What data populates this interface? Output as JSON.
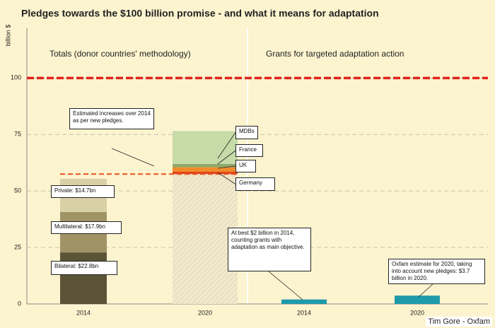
{
  "chart_data": {
    "type": "stacked_bar",
    "title": "Pledges towards the $100 billion promise - and what it means for adaptation",
    "y_label": "billion $",
    "panel_titles": [
      "Totals (donor countries' methodology)",
      "Grants for targeted adaptation action"
    ],
    "categories": [
      "2014",
      "2020",
      "2014",
      "2020"
    ],
    "ylim": [
      0,
      122
    ],
    "yticks": [
      0,
      25,
      50,
      75,
      100
    ],
    "grid": true,
    "series": [
      {
        "color": "#5c5438",
        "values": [
          22.8,
          null,
          null,
          null
        ],
        "value_labels": [
          "Bilateral:  $22.8bn",
          null,
          null,
          null
        ]
      },
      {
        "color": "#a09467",
        "values": [
          17.9,
          null,
          null,
          null
        ],
        "value_labels": [
          "Multilateral:  $17.9bn",
          null,
          null,
          null
        ]
      },
      {
        "color": "#d9d0a6",
        "values": [
          14.7,
          null,
          null,
          null
        ],
        "value_labels": [
          "Private:  $14.7bn",
          null,
          null,
          null
        ]
      },
      {
        "color": "#efe6c6",
        "pattern": "hatch",
        "values": [
          null,
          57.5,
          null,
          null
        ]
      },
      {
        "name": "Germany",
        "color": "#e2441c",
        "values": [
          null,
          1,
          null,
          null
        ]
      },
      {
        "name": "UK",
        "color": "#f08c2c",
        "values": [
          null,
          2,
          null,
          null
        ]
      },
      {
        "name": "France",
        "color": "#8fa86c",
        "values": [
          null,
          1.5,
          null,
          null
        ]
      },
      {
        "name": "MDBs",
        "color": "#c6dba8",
        "values": [
          null,
          14.5,
          null,
          null
        ]
      },
      {
        "color": "#1e9bab",
        "values": [
          null,
          null,
          2,
          3.7
        ]
      }
    ],
    "reference_lines": [
      {
        "value": 100,
        "color": "#e3231b"
      },
      {
        "value": 57.5,
        "color": "#e8501e"
      }
    ],
    "annotations": [
      "Estimated increases over 2014 as per new pledges.",
      "At best $2 billion in 2014, counting grants with adaptation as main objective.",
      "Oxfam estimate for 2020, taking into account new pledges: $3.7 billion in 2020."
    ],
    "source": "Tim Gore - Oxfam"
  }
}
